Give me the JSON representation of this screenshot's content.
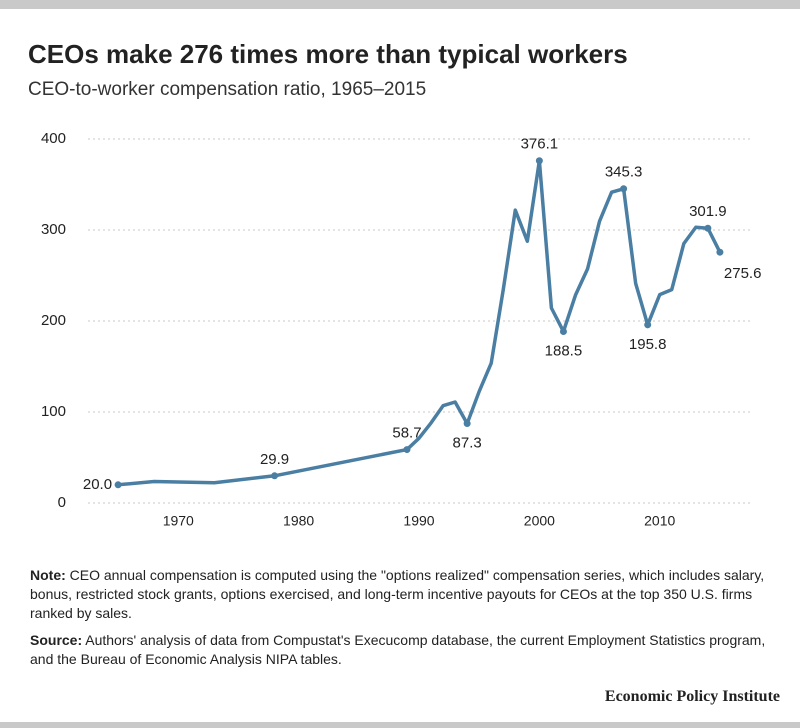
{
  "chart_data": {
    "type": "line",
    "title": "CEOs make 276 times more than typical workers",
    "subtitle": "CEO-to-worker compensation ratio, 1965–2015",
    "x": [
      1965,
      1968,
      1973,
      1978,
      1989,
      1990,
      1991,
      1992,
      1993,
      1994,
      1995,
      1996,
      1997,
      1998,
      1999,
      2000,
      2001,
      2002,
      2003,
      2004,
      2005,
      2006,
      2007,
      2008,
      2009,
      2010,
      2011,
      2012,
      2013,
      2014,
      2015
    ],
    "series": [
      {
        "name": "CEO-to-worker compensation ratio",
        "color": "#4a7fa3",
        "values": [
          20.0,
          23.6,
          22.3,
          29.9,
          58.7,
          71.2,
          88.0,
          106.9,
          111.0,
          87.3,
          122.6,
          153.7,
          234.4,
          321.8,
          287.7,
          376.1,
          214.3,
          188.5,
          228.4,
          257.1,
          309.7,
          341.5,
          345.3,
          241.4,
          195.8,
          229.0,
          234.5,
          285.0,
          303.0,
          301.9,
          275.6
        ],
        "value_labels": [
          "20.0",
          null,
          null,
          "29.9",
          "58.7",
          null,
          null,
          null,
          null,
          "87.3",
          null,
          null,
          null,
          null,
          null,
          "376.1",
          null,
          "188.5",
          null,
          null,
          null,
          null,
          "345.3",
          null,
          "195.8",
          null,
          null,
          null,
          null,
          "301.9",
          "275.6"
        ]
      }
    ],
    "xlim": [
      1962.5,
      2017.5
    ],
    "xticks": [
      1970,
      1980,
      1990,
      2000,
      2010
    ],
    "ylim": [
      0,
      400
    ],
    "yticks": [
      0,
      100,
      200,
      300,
      400
    ],
    "grid": true
  },
  "notes": [
    {
      "label": "Note:",
      "text": "CEO annual compensation is computed using the \"options realized\" compensation series, which includes salary, bonus, restricted stock grants, options exercised, and long-term incentive payouts for CEOs at the top 350 U.S. firms ranked by sales."
    },
    {
      "label": "Source:",
      "text": "Authors' analysis of data from Compustat's Execucomp database, the current Employment Statistics program, and the Bureau of Economic Analysis NIPA tables."
    }
  ],
  "publisher": "Economic Policy Institute"
}
